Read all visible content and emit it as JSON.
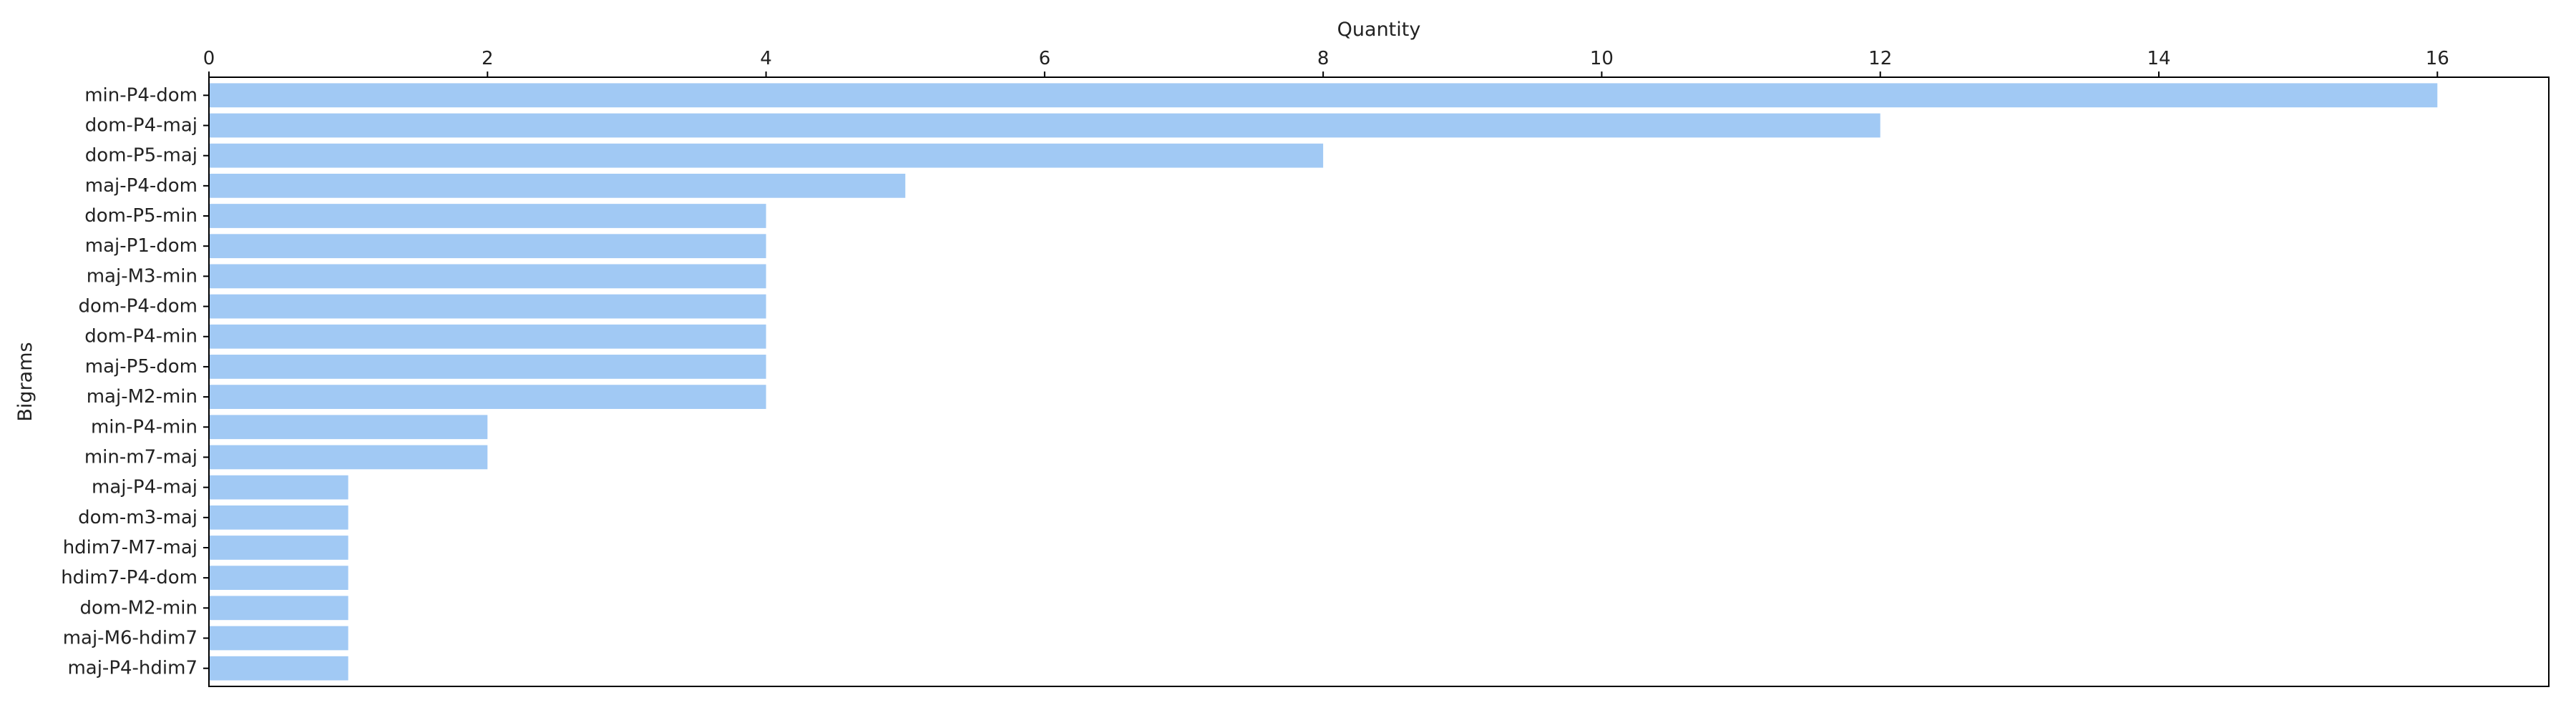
{
  "chart_data": {
    "type": "bar",
    "orientation": "horizontal",
    "xlabel": "Quantity",
    "ylabel": "Bigrams",
    "xlabel_position": "top",
    "xlim": [
      0,
      16.8
    ],
    "xticks": [
      0,
      2,
      4,
      6,
      8,
      10,
      12,
      14,
      16
    ],
    "grid": false,
    "bar_color": "#a1c9f4",
    "categories": [
      "min-P4-dom",
      "dom-P4-maj",
      "dom-P5-maj",
      "maj-P4-dom",
      "dom-P5-min",
      "maj-P1-dom",
      "maj-M3-min",
      "dom-P4-dom",
      "dom-P4-min",
      "maj-P5-dom",
      "maj-M2-min",
      "min-P4-min",
      "min-m7-maj",
      "maj-P4-maj",
      "dom-m3-maj",
      "hdim7-M7-maj",
      "hdim7-P4-dom",
      "dom-M2-min",
      "maj-M6-hdim7",
      "maj-P4-hdim7"
    ],
    "values": [
      16,
      12,
      8,
      5,
      4,
      4,
      4,
      4,
      4,
      4,
      4,
      2,
      2,
      1,
      1,
      1,
      1,
      1,
      1,
      1
    ]
  }
}
